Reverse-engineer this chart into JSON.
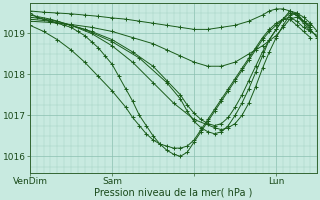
{
  "xlabel": "Pression niveau de la mer( hPa )",
  "bg_color": "#c8eae0",
  "plot_bg_color": "#c8eae0",
  "line_color": "#1a5c1a",
  "marker": "+",
  "xlim": [
    0,
    84
  ],
  "ylim": [
    1015.6,
    1019.75
  ],
  "yticks": [
    1016,
    1017,
    1018,
    1019
  ],
  "xtick_positions": [
    0,
    24,
    48,
    72
  ],
  "xtick_labels": [
    "VenDim",
    "Sam",
    "",
    "Lun"
  ],
  "series": [
    [
      0,
      1019.5,
      2,
      1019.4,
      4,
      1019.35,
      6,
      1019.3,
      8,
      1019.25,
      10,
      1019.2,
      12,
      1019.15,
      14,
      1019.05,
      16,
      1018.95,
      18,
      1018.8,
      20,
      1018.65,
      22,
      1018.45,
      24,
      1018.25,
      26,
      1017.95,
      28,
      1017.65,
      30,
      1017.35,
      32,
      1017.0,
      34,
      1016.75,
      36,
      1016.5,
      38,
      1016.3,
      40,
      1016.15,
      42,
      1016.05,
      44,
      1016.0,
      46,
      1016.1,
      48,
      1016.35,
      50,
      1016.6,
      52,
      1016.85,
      54,
      1017.1,
      56,
      1017.35,
      58,
      1017.6,
      60,
      1017.85,
      62,
      1018.1,
      64,
      1018.35,
      66,
      1018.6,
      68,
      1018.85,
      70,
      1019.05,
      72,
      1019.2,
      74,
      1019.35,
      76,
      1019.4,
      78,
      1019.3,
      80,
      1019.15,
      82,
      1019.05,
      84,
      1018.95
    ],
    [
      0,
      1019.45,
      6,
      1019.35,
      12,
      1019.2,
      18,
      1019.0,
      24,
      1018.7,
      30,
      1018.3,
      36,
      1017.8,
      42,
      1017.3,
      48,
      1016.9,
      54,
      1016.7,
      56,
      1016.65,
      58,
      1016.7,
      60,
      1016.8,
      62,
      1017.0,
      64,
      1017.3,
      66,
      1017.7,
      68,
      1018.15,
      70,
      1018.55,
      72,
      1018.9,
      74,
      1019.2,
      76,
      1019.45,
      78,
      1019.5,
      80,
      1019.4,
      82,
      1019.25,
      84,
      1019.05
    ],
    [
      0,
      1019.4,
      8,
      1019.3,
      16,
      1019.1,
      24,
      1018.8,
      32,
      1018.4,
      40,
      1017.8,
      44,
      1017.4,
      46,
      1017.1,
      48,
      1016.85,
      50,
      1016.7,
      52,
      1016.6,
      54,
      1016.55,
      56,
      1016.6,
      58,
      1016.75,
      60,
      1017.0,
      62,
      1017.3,
      64,
      1017.65,
      66,
      1018.05,
      68,
      1018.45,
      70,
      1018.85,
      72,
      1019.1,
      74,
      1019.35,
      76,
      1019.55,
      78,
      1019.5,
      80,
      1019.3,
      82,
      1019.1,
      84,
      1018.9
    ],
    [
      0,
      1019.35,
      6,
      1019.3,
      12,
      1019.2,
      18,
      1019.05,
      24,
      1018.85,
      30,
      1018.55,
      36,
      1018.2,
      40,
      1017.85,
      44,
      1017.5,
      46,
      1017.25,
      48,
      1017.05,
      50,
      1016.9,
      52,
      1016.8,
      54,
      1016.75,
      56,
      1016.8,
      58,
      1016.95,
      60,
      1017.2,
      62,
      1017.5,
      64,
      1017.85,
      66,
      1018.2,
      68,
      1018.55,
      70,
      1018.85,
      72,
      1019.1,
      74,
      1019.35,
      76,
      1019.5,
      78,
      1019.45,
      80,
      1019.25,
      82,
      1019.05
    ],
    [
      0,
      1019.3,
      6,
      1019.27,
      12,
      1019.22,
      18,
      1019.15,
      24,
      1019.05,
      30,
      1018.9,
      36,
      1018.75,
      40,
      1018.6,
      44,
      1018.45,
      48,
      1018.3,
      52,
      1018.2,
      56,
      1018.2,
      60,
      1018.3,
      64,
      1018.5,
      68,
      1018.7,
      72,
      1018.95,
      74,
      1019.15,
      76,
      1019.35,
      78,
      1019.4,
      80,
      1019.3,
      82,
      1019.15
    ],
    [
      0,
      1019.55,
      4,
      1019.52,
      8,
      1019.5,
      12,
      1019.48,
      16,
      1019.45,
      20,
      1019.42,
      24,
      1019.38,
      28,
      1019.35,
      32,
      1019.3,
      36,
      1019.25,
      40,
      1019.2,
      44,
      1019.15,
      48,
      1019.1,
      52,
      1019.1,
      56,
      1019.15,
      60,
      1019.2,
      64,
      1019.3,
      68,
      1019.45,
      70,
      1019.55,
      72,
      1019.6,
      74,
      1019.6,
      76,
      1019.55,
      78,
      1019.45,
      80,
      1019.3,
      82,
      1019.2
    ],
    [
      0,
      1019.2,
      4,
      1019.05,
      8,
      1018.85,
      12,
      1018.6,
      16,
      1018.3,
      20,
      1017.95,
      24,
      1017.6,
      28,
      1017.2,
      30,
      1016.95,
      32,
      1016.75,
      34,
      1016.55,
      36,
      1016.4,
      38,
      1016.3,
      40,
      1016.25,
      42,
      1016.2,
      44,
      1016.2,
      46,
      1016.25,
      48,
      1016.4,
      50,
      1016.65,
      52,
      1016.9,
      54,
      1017.15,
      56,
      1017.4,
      58,
      1017.65,
      60,
      1017.9,
      62,
      1018.15,
      64,
      1018.4,
      66,
      1018.65,
      68,
      1018.9,
      70,
      1019.1,
      72,
      1019.25,
      74,
      1019.35,
      76,
      1019.35,
      78,
      1019.2,
      80,
      1019.05,
      82,
      1018.9
    ]
  ]
}
